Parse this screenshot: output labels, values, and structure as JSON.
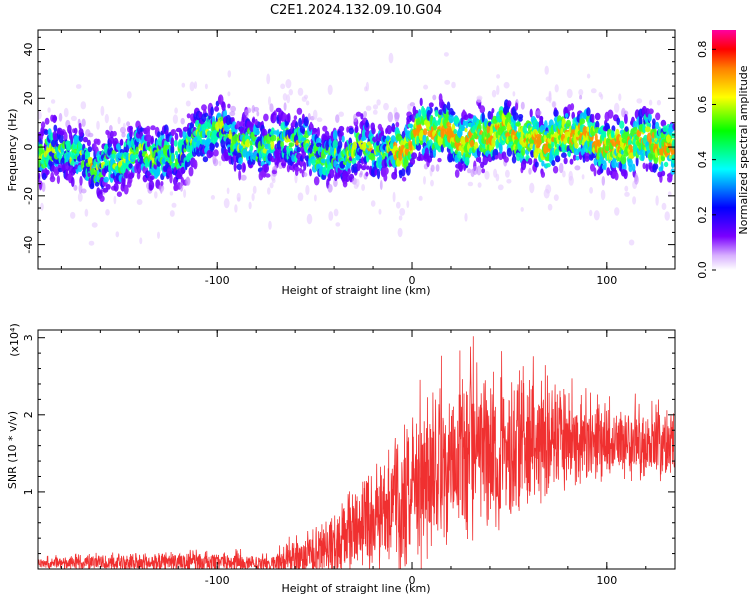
{
  "title": "C2E1.2024.132.09.10.G04",
  "chart_data": [
    {
      "type": "heatmap",
      "description_free": true,
      "xlabel": "Height of straight line (km)",
      "ylabel": "Frequency (Hz)",
      "xlim": [
        -192,
        135
      ],
      "ylim": [
        -50,
        48
      ],
      "xticks": [
        -100,
        0,
        100
      ],
      "yticks": [
        -40,
        -20,
        0,
        20,
        40
      ],
      "colorbar": {
        "label": "Normalized spectral amplitude",
        "range": [
          0,
          0.87
        ],
        "ticks": [
          0.0,
          0.2,
          0.4,
          0.6,
          0.8
        ],
        "colors": [
          "#ffffff",
          "#7a00ff",
          "#0000ff",
          "#00ffff",
          "#00ff00",
          "#ffff00",
          "#ff8000",
          "#ff0000",
          "#ff00a0"
        ]
      },
      "band_center_hz": [
        [
          -192,
          -2
        ],
        [
          -170,
          -5
        ],
        [
          -150,
          -6
        ],
        [
          -130,
          -3
        ],
        [
          -110,
          2
        ],
        [
          -100,
          6
        ],
        [
          -85,
          3
        ],
        [
          -70,
          0
        ],
        [
          -55,
          2
        ],
        [
          -45,
          -2
        ],
        [
          -35,
          -4
        ],
        [
          -20,
          -1
        ],
        [
          -5,
          1
        ],
        [
          10,
          5
        ],
        [
          30,
          5
        ],
        [
          50,
          4
        ],
        [
          70,
          4
        ],
        [
          90,
          3
        ],
        [
          110,
          2
        ],
        [
          135,
          -2
        ]
      ]
    },
    {
      "type": "line",
      "xlabel": "Height of straight line (km)",
      "ylabel": "SNR (10 * v/v)",
      "y_multiplier": "(x10⁴)",
      "xlim": [
        -192,
        135
      ],
      "ylim": [
        0,
        3.1
      ],
      "xticks": [
        -100,
        0,
        100
      ],
      "yticks": [
        1,
        2,
        3
      ],
      "color": "#f03030",
      "envelope": [
        {
          "x": -192,
          "mean": 0.07,
          "amp": 0.06
        },
        {
          "x": -150,
          "mean": 0.08,
          "amp": 0.1
        },
        {
          "x": -110,
          "mean": 0.09,
          "amp": 0.14
        },
        {
          "x": -75,
          "mean": 0.08,
          "amp": 0.1
        },
        {
          "x": -55,
          "mean": 0.15,
          "amp": 0.25
        },
        {
          "x": -40,
          "mean": 0.35,
          "amp": 0.45
        },
        {
          "x": -20,
          "mean": 0.65,
          "amp": 0.6
        },
        {
          "x": 0,
          "mean": 1.0,
          "amp": 0.9
        },
        {
          "x": 20,
          "mean": 1.35,
          "amp": 1.0
        },
        {
          "x": 40,
          "mean": 1.55,
          "amp": 1.0
        },
        {
          "x": 60,
          "mean": 1.62,
          "amp": 0.85
        },
        {
          "x": 80,
          "mean": 1.65,
          "amp": 0.6
        },
        {
          "x": 100,
          "mean": 1.65,
          "amp": 0.45
        },
        {
          "x": 135,
          "mean": 1.62,
          "amp": 0.4
        }
      ]
    }
  ]
}
